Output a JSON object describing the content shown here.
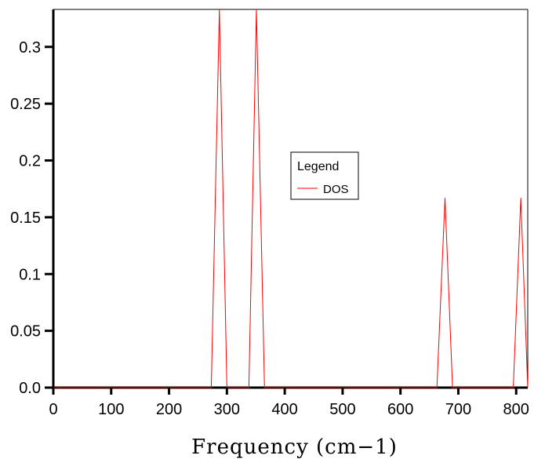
{
  "chart_data": {
    "type": "line",
    "title": "",
    "xlabel": "Frequency (cm−1)",
    "ylabel": "",
    "xlim": [
      0,
      820
    ],
    "ylim": [
      0,
      0.333
    ],
    "x_ticks": [
      0,
      100,
      200,
      300,
      400,
      500,
      600,
      700,
      800
    ],
    "x_tick_labels": [
      "0",
      "100",
      "200",
      "300",
      "400",
      "500",
      "600",
      "700",
      "800"
    ],
    "y_ticks": [
      0,
      0.05,
      0.1,
      0.15,
      0.2,
      0.25,
      0.3
    ],
    "y_tick_labels": [
      "0.0",
      "0.05",
      "0.1",
      "0.15",
      "0.2",
      "0.25",
      "0.3"
    ],
    "grid": false,
    "legend": {
      "title": "Legend",
      "placement": "center",
      "entries": [
        "DOS"
      ]
    },
    "series": [
      {
        "name": "DOS",
        "color": "#ff0000",
        "x": [
          0,
          273,
          287,
          300,
          338,
          351,
          365,
          663,
          677,
          690,
          795,
          808,
          820
        ],
        "y": [
          0,
          0,
          0.333,
          0,
          0,
          0.333,
          0,
          0,
          0.167,
          0,
          0,
          0.167,
          0
        ]
      }
    ]
  }
}
